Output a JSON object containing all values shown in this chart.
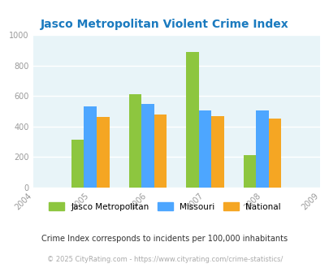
{
  "title": "Jasco Metropolitan Violent Crime Index",
  "data_years": [
    2005,
    2006,
    2007,
    2008
  ],
  "xticks": [
    2004,
    2005,
    2006,
    2007,
    2008,
    2009
  ],
  "jasco": [
    315,
    610,
    890,
    210
  ],
  "missouri": [
    530,
    550,
    505,
    505
  ],
  "national": [
    465,
    478,
    468,
    452
  ],
  "bar_colors": {
    "jasco": "#8dc63f",
    "missouri": "#4da6ff",
    "national": "#f5a623"
  },
  "ylim": [
    0,
    1000
  ],
  "yticks": [
    0,
    200,
    400,
    600,
    800,
    1000
  ],
  "bg_color": "#e8f4f8",
  "grid_color": "#ffffff",
  "title_color": "#1a7abf",
  "legend_labels": [
    "Jasco Metropolitan",
    "Missouri",
    "National"
  ],
  "footnote1": "Crime Index corresponds to incidents per 100,000 inhabitants",
  "footnote2": "© 2025 CityRating.com - https://www.cityrating.com/crime-statistics/",
  "bar_width": 0.22
}
